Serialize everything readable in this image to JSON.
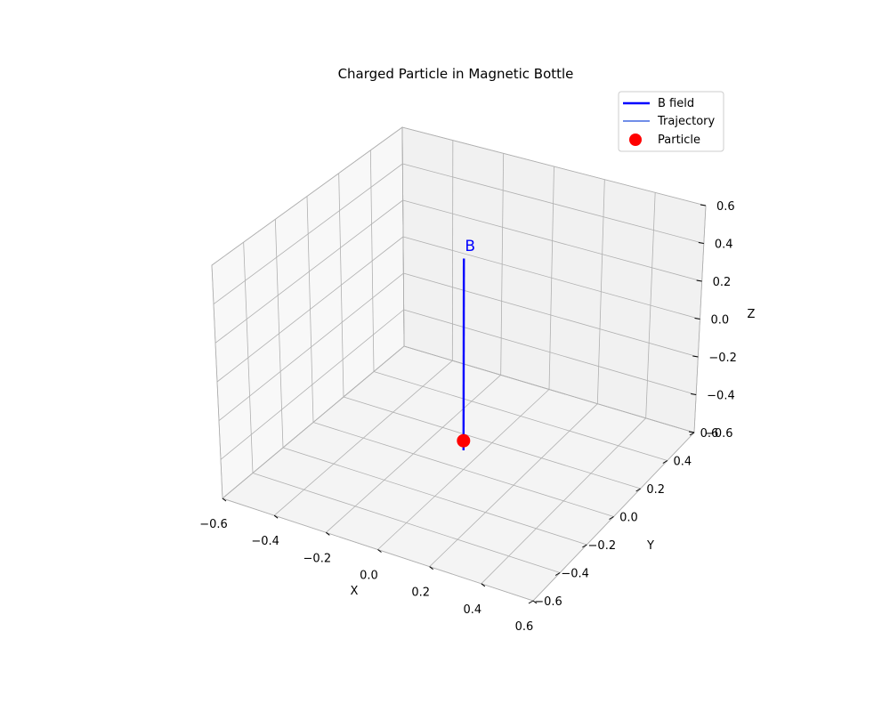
{
  "chart_data": {
    "type": "line3d",
    "title": "Charged Particle in Magnetic Bottle",
    "xlabel": "X",
    "ylabel": "Y",
    "zlabel": "Z",
    "xlim": [
      -0.6,
      0.6
    ],
    "ylim": [
      -0.6,
      0.6
    ],
    "zlim": [
      -0.6,
      0.6
    ],
    "xticks": [
      "−0.6",
      "−0.4",
      "−0.2",
      "0.0",
      "0.2",
      "0.4",
      "0.6"
    ],
    "yticks": [
      "−0.6",
      "−0.4",
      "−0.2",
      "0.0",
      "0.2",
      "0.4",
      "0.6"
    ],
    "zticks": [
      "−0.6",
      "−0.4",
      "−0.2",
      "0.0",
      "0.2",
      "0.4",
      "0.6"
    ],
    "grid": true,
    "legend_position": "top-right",
    "series": [
      {
        "name": "B field",
        "kind": "line",
        "color": "#0000ff",
        "points": [
          [
            0,
            0,
            -0.5
          ],
          [
            0,
            0,
            0.5
          ]
        ]
      },
      {
        "name": "Trajectory",
        "kind": "line",
        "color": "#4169e1",
        "points": []
      },
      {
        "name": "Particle",
        "kind": "marker",
        "color": "#ff0000",
        "points": [
          [
            0,
            0,
            -0.45
          ]
        ]
      }
    ],
    "annotations": [
      {
        "text": "B",
        "color": "#0000ff",
        "at": [
          0,
          0,
          0.55
        ]
      }
    ]
  }
}
